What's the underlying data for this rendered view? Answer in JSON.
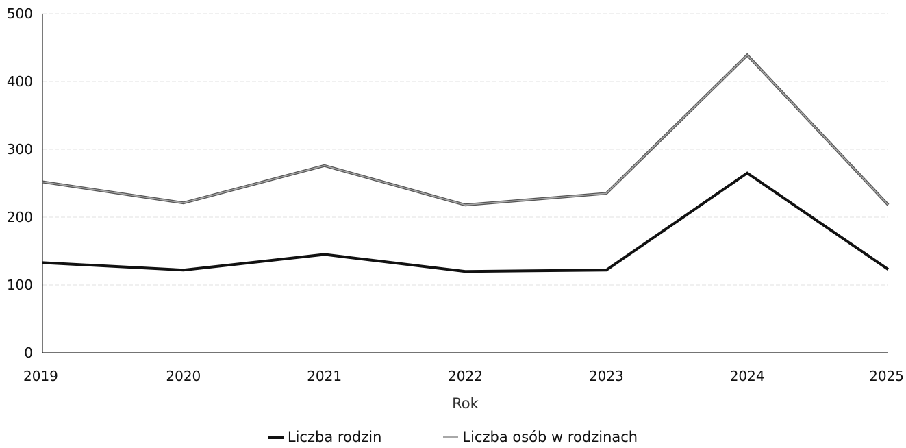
{
  "chart_data": {
    "type": "line",
    "x": [
      "2019",
      "2020",
      "2021",
      "2022",
      "2023",
      "2024",
      "2025"
    ],
    "series": [
      {
        "name": "Liczba rodzin",
        "values": [
          133,
          122,
          145,
          120,
          122,
          265,
          123
        ],
        "color": "#111111"
      },
      {
        "name": "Liczba osób w rodzinach",
        "values": [
          252,
          221,
          276,
          218,
          235,
          439,
          218
        ],
        "color": "#7a7a7a"
      }
    ],
    "xlabel": "Rok",
    "ylabel": "",
    "ylim": [
      0,
      500
    ],
    "yticks": [
      "0",
      "100",
      "200",
      "300",
      "400",
      "500"
    ],
    "grid": true,
    "legend_position": "bottom"
  }
}
